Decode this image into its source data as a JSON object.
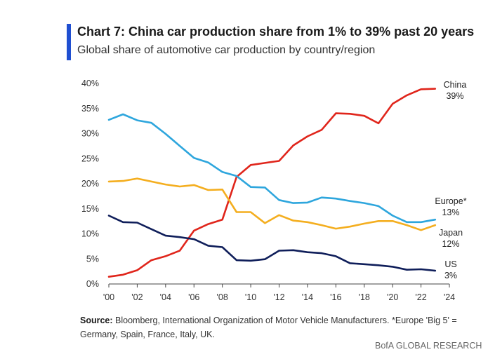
{
  "header": {
    "title": "Chart 7: China car production share from 1% to 39% past 20 years",
    "subtitle": "Global share of automotive car production by country/region"
  },
  "footer": {
    "source_label": "Source:",
    "source_text": "Bloomberg, International Organization of Motor Vehicle Manufacturers. *Europe 'Big 5' = Germany, Spain, France, Italy, UK.",
    "brand": "BofA GLOBAL RESEARCH"
  },
  "chart_data": {
    "type": "line",
    "title": "Chart 7: China car production share from 1% to 39% past 20 years",
    "subtitle": "Global share of automotive car production by country/region",
    "x": [
      2000,
      2001,
      2002,
      2003,
      2004,
      2005,
      2006,
      2007,
      2008,
      2009,
      2010,
      2011,
      2012,
      2013,
      2014,
      2015,
      2016,
      2017,
      2018,
      2019,
      2020,
      2021,
      2022,
      2023
    ],
    "xlim": [
      2000,
      2024
    ],
    "ylim": [
      0,
      40
    ],
    "xticks": [
      "'00",
      "'02",
      "'04",
      "'06",
      "'08",
      "'10",
      "'12",
      "'14",
      "'16",
      "'18",
      "'20",
      "'22",
      "'24"
    ],
    "xtick_values": [
      2000,
      2002,
      2004,
      2006,
      2008,
      2010,
      2012,
      2014,
      2016,
      2018,
      2020,
      2022,
      2024
    ],
    "yticks": [
      "0%",
      "5%",
      "10%",
      "15%",
      "20%",
      "25%",
      "30%",
      "35%",
      "40%"
    ],
    "ytick_values": [
      0,
      5,
      10,
      15,
      20,
      25,
      30,
      35,
      40
    ],
    "grid": false,
    "series": [
      {
        "name": "China",
        "end_label": "39%",
        "color": "#e0251b",
        "values": [
          1.3,
          1.7,
          2.6,
          4.6,
          5.4,
          6.5,
          10.5,
          11.8,
          12.7,
          21.2,
          23.6,
          24.0,
          24.4,
          27.5,
          29.3,
          30.6,
          33.9,
          33.8,
          33.4,
          31.9,
          35.8,
          37.5,
          38.7,
          38.8
        ]
      },
      {
        "name": "Europe*",
        "end_label": "13%",
        "color": "#2ea6dd",
        "values": [
          32.6,
          33.7,
          32.5,
          32.0,
          29.8,
          27.4,
          25.0,
          24.1,
          22.2,
          21.4,
          19.2,
          19.1,
          16.6,
          16.0,
          16.1,
          17.1,
          16.9,
          16.4,
          16.0,
          15.4,
          13.5,
          12.2,
          12.2,
          12.7
        ]
      },
      {
        "name": "Japan",
        "end_label": "12%",
        "color": "#f4ae1f",
        "values": [
          20.3,
          20.4,
          20.9,
          20.3,
          19.7,
          19.3,
          19.6,
          18.6,
          18.7,
          14.2,
          14.2,
          12.0,
          13.6,
          12.5,
          12.2,
          11.6,
          10.9,
          11.3,
          11.9,
          12.4,
          12.4,
          11.6,
          10.6,
          11.6
        ]
      },
      {
        "name": "US",
        "end_label": "3%",
        "color": "#0f1e5a",
        "values": [
          13.5,
          12.2,
          12.1,
          10.8,
          9.5,
          9.2,
          8.8,
          7.5,
          7.2,
          4.6,
          4.5,
          4.8,
          6.5,
          6.6,
          6.2,
          6.0,
          5.4,
          4.0,
          3.8,
          3.6,
          3.3,
          2.7,
          2.8,
          2.5
        ]
      }
    ]
  }
}
